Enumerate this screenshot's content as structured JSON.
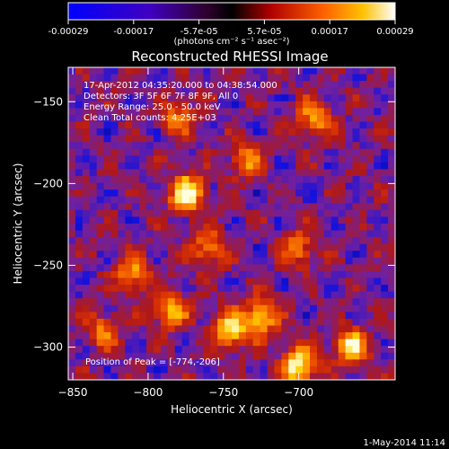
{
  "colorbar": {
    "ticks": [
      "-0.00029",
      "-0.00017",
      "-5.7e-05",
      "5.7e-05",
      "0.00017",
      "0.00029"
    ],
    "units": "(photons cm⁻² s⁻¹ asec⁻²)"
  },
  "chart_data": {
    "type": "heatmap",
    "title": "Reconstructed RHESSI Image",
    "xlabel": "Heliocentric X (arcsec)",
    "ylabel": "Heliocentric Y (arcsec)",
    "xlim": [
      -853,
      -636
    ],
    "ylim": [
      -320,
      -129
    ],
    "xticks": [
      -850,
      -800,
      -750,
      -700
    ],
    "yticks": [
      -150,
      -200,
      -250,
      -300
    ],
    "colormap": [
      "#000000",
      "#1010e0",
      "#7020a0",
      "#b01818",
      "#e03800",
      "#ff8800",
      "#ffd000",
      "#ffffe0"
    ],
    "annotations": [
      "17-Apr-2012 04:35:20.000 to 04:38:54.000",
      "Detectors: 3F 5F 6F 7F 8F 9F, All 0",
      "Energy Range: 25.0 - 50.0 keV",
      "Clean     Total counts: 4.25E+03"
    ],
    "peak_label": "Position of Peak = [-774,-206]",
    "peak": [
      -774,
      -206
    ],
    "sources": [
      {
        "x": -774,
        "y": -206,
        "amplitude": 1.0
      },
      {
        "x": -700,
        "y": -312,
        "amplitude": 0.95
      },
      {
        "x": -665,
        "y": -300,
        "amplitude": 0.85
      },
      {
        "x": -745,
        "y": -290,
        "amplitude": 0.8
      },
      {
        "x": -725,
        "y": -282,
        "amplitude": 0.75
      },
      {
        "x": -785,
        "y": -278,
        "amplitude": 0.7
      },
      {
        "x": -690,
        "y": -160,
        "amplitude": 0.6
      },
      {
        "x": -735,
        "y": -185,
        "amplitude": 0.55
      },
      {
        "x": -780,
        "y": -160,
        "amplitude": 0.5
      },
      {
        "x": -810,
        "y": -255,
        "amplitude": 0.6
      },
      {
        "x": -700,
        "y": -240,
        "amplitude": 0.5
      },
      {
        "x": -830,
        "y": -290,
        "amplitude": 0.45
      },
      {
        "x": -760,
        "y": -240,
        "amplitude": 0.55
      }
    ]
  },
  "footer_timestamp": "1-May-2014 11:14"
}
